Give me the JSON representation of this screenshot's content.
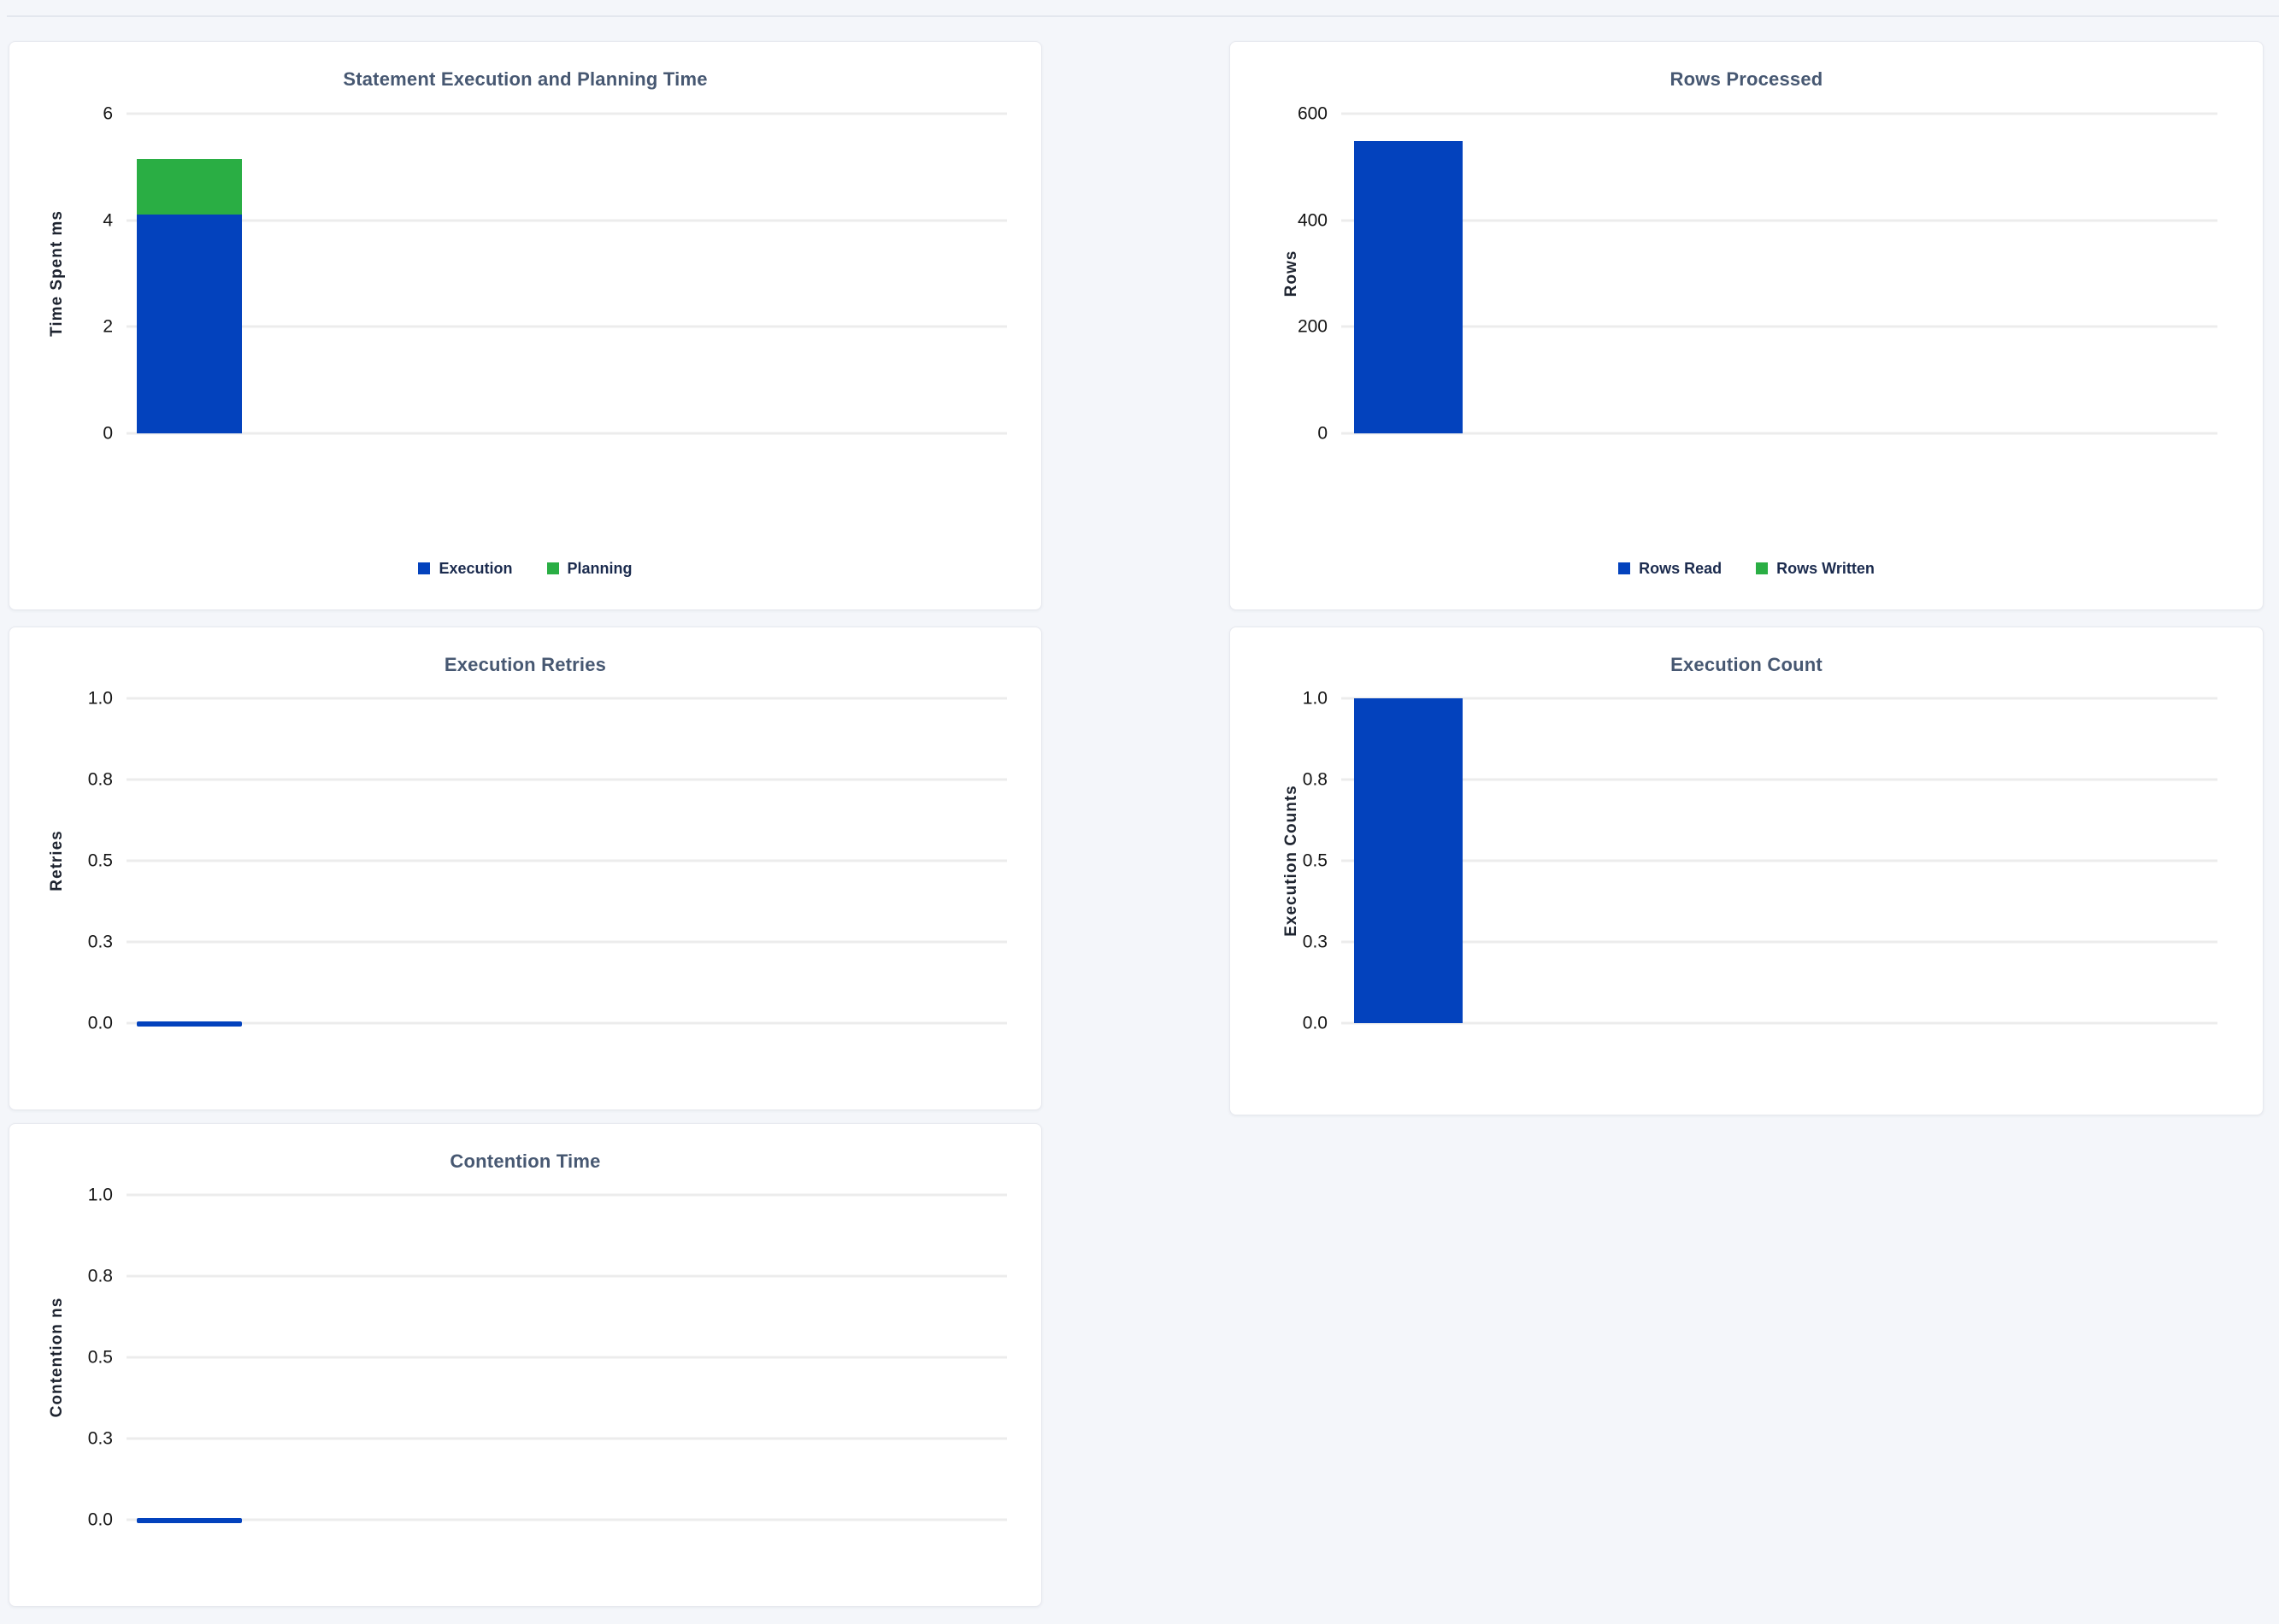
{
  "page": {
    "background_color": "#f4f6fa",
    "divider_color": "#e3e7ee",
    "card_background": "#ffffff",
    "title_color": "#475872",
    "gridline_color": "#ececec",
    "legend_text_color": "#1b2b4e"
  },
  "chart_data": [
    {
      "type": "bar",
      "stacked": true,
      "title": "Statement Execution and Planning Time",
      "ylabel": "Time Spent ms",
      "xlabel": "",
      "ylim": [
        0,
        6
      ],
      "ymax": 6,
      "yticks": [
        "6",
        "4",
        "2",
        "0"
      ],
      "grid": "horizontal",
      "legend_position": "bottom",
      "categories": [
        ""
      ],
      "series": [
        {
          "name": "Execution",
          "value": 4.1,
          "color": "#0342bd"
        },
        {
          "name": "Planning",
          "value": 1.05,
          "color": "#2aae44"
        }
      ]
    },
    {
      "type": "bar",
      "stacked": false,
      "title": "Rows Processed",
      "ylabel": "Rows",
      "xlabel": "",
      "ylim": [
        0,
        600
      ],
      "ymax": 600,
      "yticks": [
        "600",
        "400",
        "200",
        "0"
      ],
      "grid": "horizontal",
      "legend_position": "bottom",
      "categories": [
        ""
      ],
      "series": [
        {
          "name": "Rows Read",
          "value": 548,
          "color": "#0342bd"
        },
        {
          "name": "Rows Written",
          "value": 0,
          "color": "#2aae44"
        }
      ]
    },
    {
      "type": "bar",
      "stacked": false,
      "title": "Execution Retries",
      "ylabel": "Retries",
      "xlabel": "",
      "ylim": [
        0,
        1
      ],
      "ymax": 1,
      "yticks": [
        "1.0",
        "0.8",
        "0.5",
        "0.3",
        "0.0"
      ],
      "grid": "horizontal",
      "legend_position": "none",
      "zero_indicator": true,
      "categories": [
        ""
      ],
      "series": [
        {
          "name": "Retries",
          "value": 0,
          "color": "#0342bd"
        }
      ]
    },
    {
      "type": "bar",
      "stacked": false,
      "title": "Execution Count",
      "ylabel": "Execution Counts",
      "xlabel": "",
      "ylim": [
        0,
        1
      ],
      "ymax": 1,
      "yticks": [
        "1.0",
        "0.8",
        "0.5",
        "0.3",
        "0.0"
      ],
      "grid": "horizontal",
      "legend_position": "none",
      "categories": [
        ""
      ],
      "series": [
        {
          "name": "Execution Count",
          "value": 1,
          "color": "#0342bd"
        }
      ]
    },
    {
      "type": "bar",
      "stacked": false,
      "title": "Contention Time",
      "ylabel": "Contention ns",
      "xlabel": "",
      "ylim": [
        0,
        1
      ],
      "ymax": 1,
      "yticks": [
        "1.0",
        "0.8",
        "0.5",
        "0.3",
        "0.0"
      ],
      "grid": "horizontal",
      "legend_position": "none",
      "zero_indicator": true,
      "categories": [
        ""
      ],
      "series": [
        {
          "name": "Contention Time",
          "value": 0,
          "color": "#0342bd"
        }
      ]
    }
  ]
}
